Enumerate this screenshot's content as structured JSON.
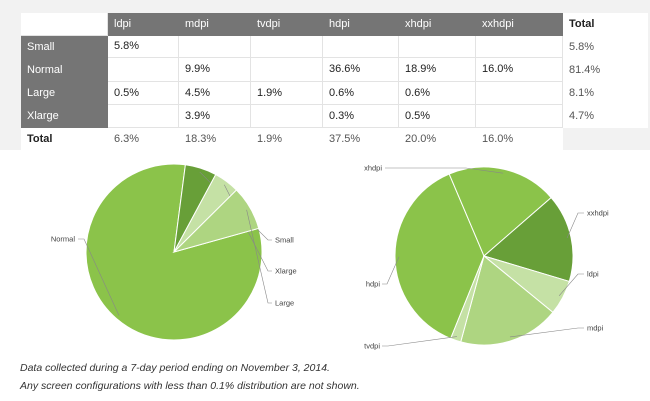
{
  "table": {
    "columns": [
      "ldpi",
      "mdpi",
      "tvdpi",
      "hdpi",
      "xhdpi",
      "xxhdpi"
    ],
    "total_label": "Total",
    "rows": [
      {
        "label": "Small",
        "values": [
          "5.8%",
          "",
          "",
          "",
          "",
          ""
        ],
        "total": "5.8%"
      },
      {
        "label": "Normal",
        "values": [
          "",
          "9.9%",
          "",
          "36.6%",
          "18.9%",
          "16.0%"
        ],
        "total": "81.4%"
      },
      {
        "label": "Large",
        "values": [
          "0.5%",
          "4.5%",
          "1.9%",
          "0.6%",
          "0.6%",
          ""
        ],
        "total": "8.1%"
      },
      {
        "label": "Xlarge",
        "values": [
          "",
          "3.9%",
          "",
          "0.3%",
          "0.5%",
          ""
        ],
        "total": "4.7%"
      }
    ],
    "totals": [
      "6.3%",
      "18.3%",
      "1.9%",
      "37.5%",
      "20.0%",
      "16.0%"
    ]
  },
  "colors": {
    "header_bg": "#757575",
    "pie_1": "#8bc34a",
    "pie_2": "#689f38",
    "pie_3": "#aed581",
    "pie_4": "#c5e1a5"
  },
  "chart_data": [
    {
      "type": "pie",
      "labels": [
        "Normal",
        "Small",
        "Xlarge",
        "Large"
      ],
      "values": [
        81.4,
        5.8,
        4.7,
        8.1
      ]
    },
    {
      "type": "pie",
      "labels": [
        "hdpi",
        "xhdpi",
        "xxhdpi",
        "ldpi",
        "mdpi",
        "tvdpi"
      ],
      "values": [
        37.5,
        20.0,
        16.0,
        6.3,
        18.3,
        1.9
      ]
    }
  ],
  "notes": {
    "line1": "Data collected during a 7-day period ending on November 3, 2014.",
    "line2": "Any screen configurations with less than 0.1% distribution are not shown."
  }
}
